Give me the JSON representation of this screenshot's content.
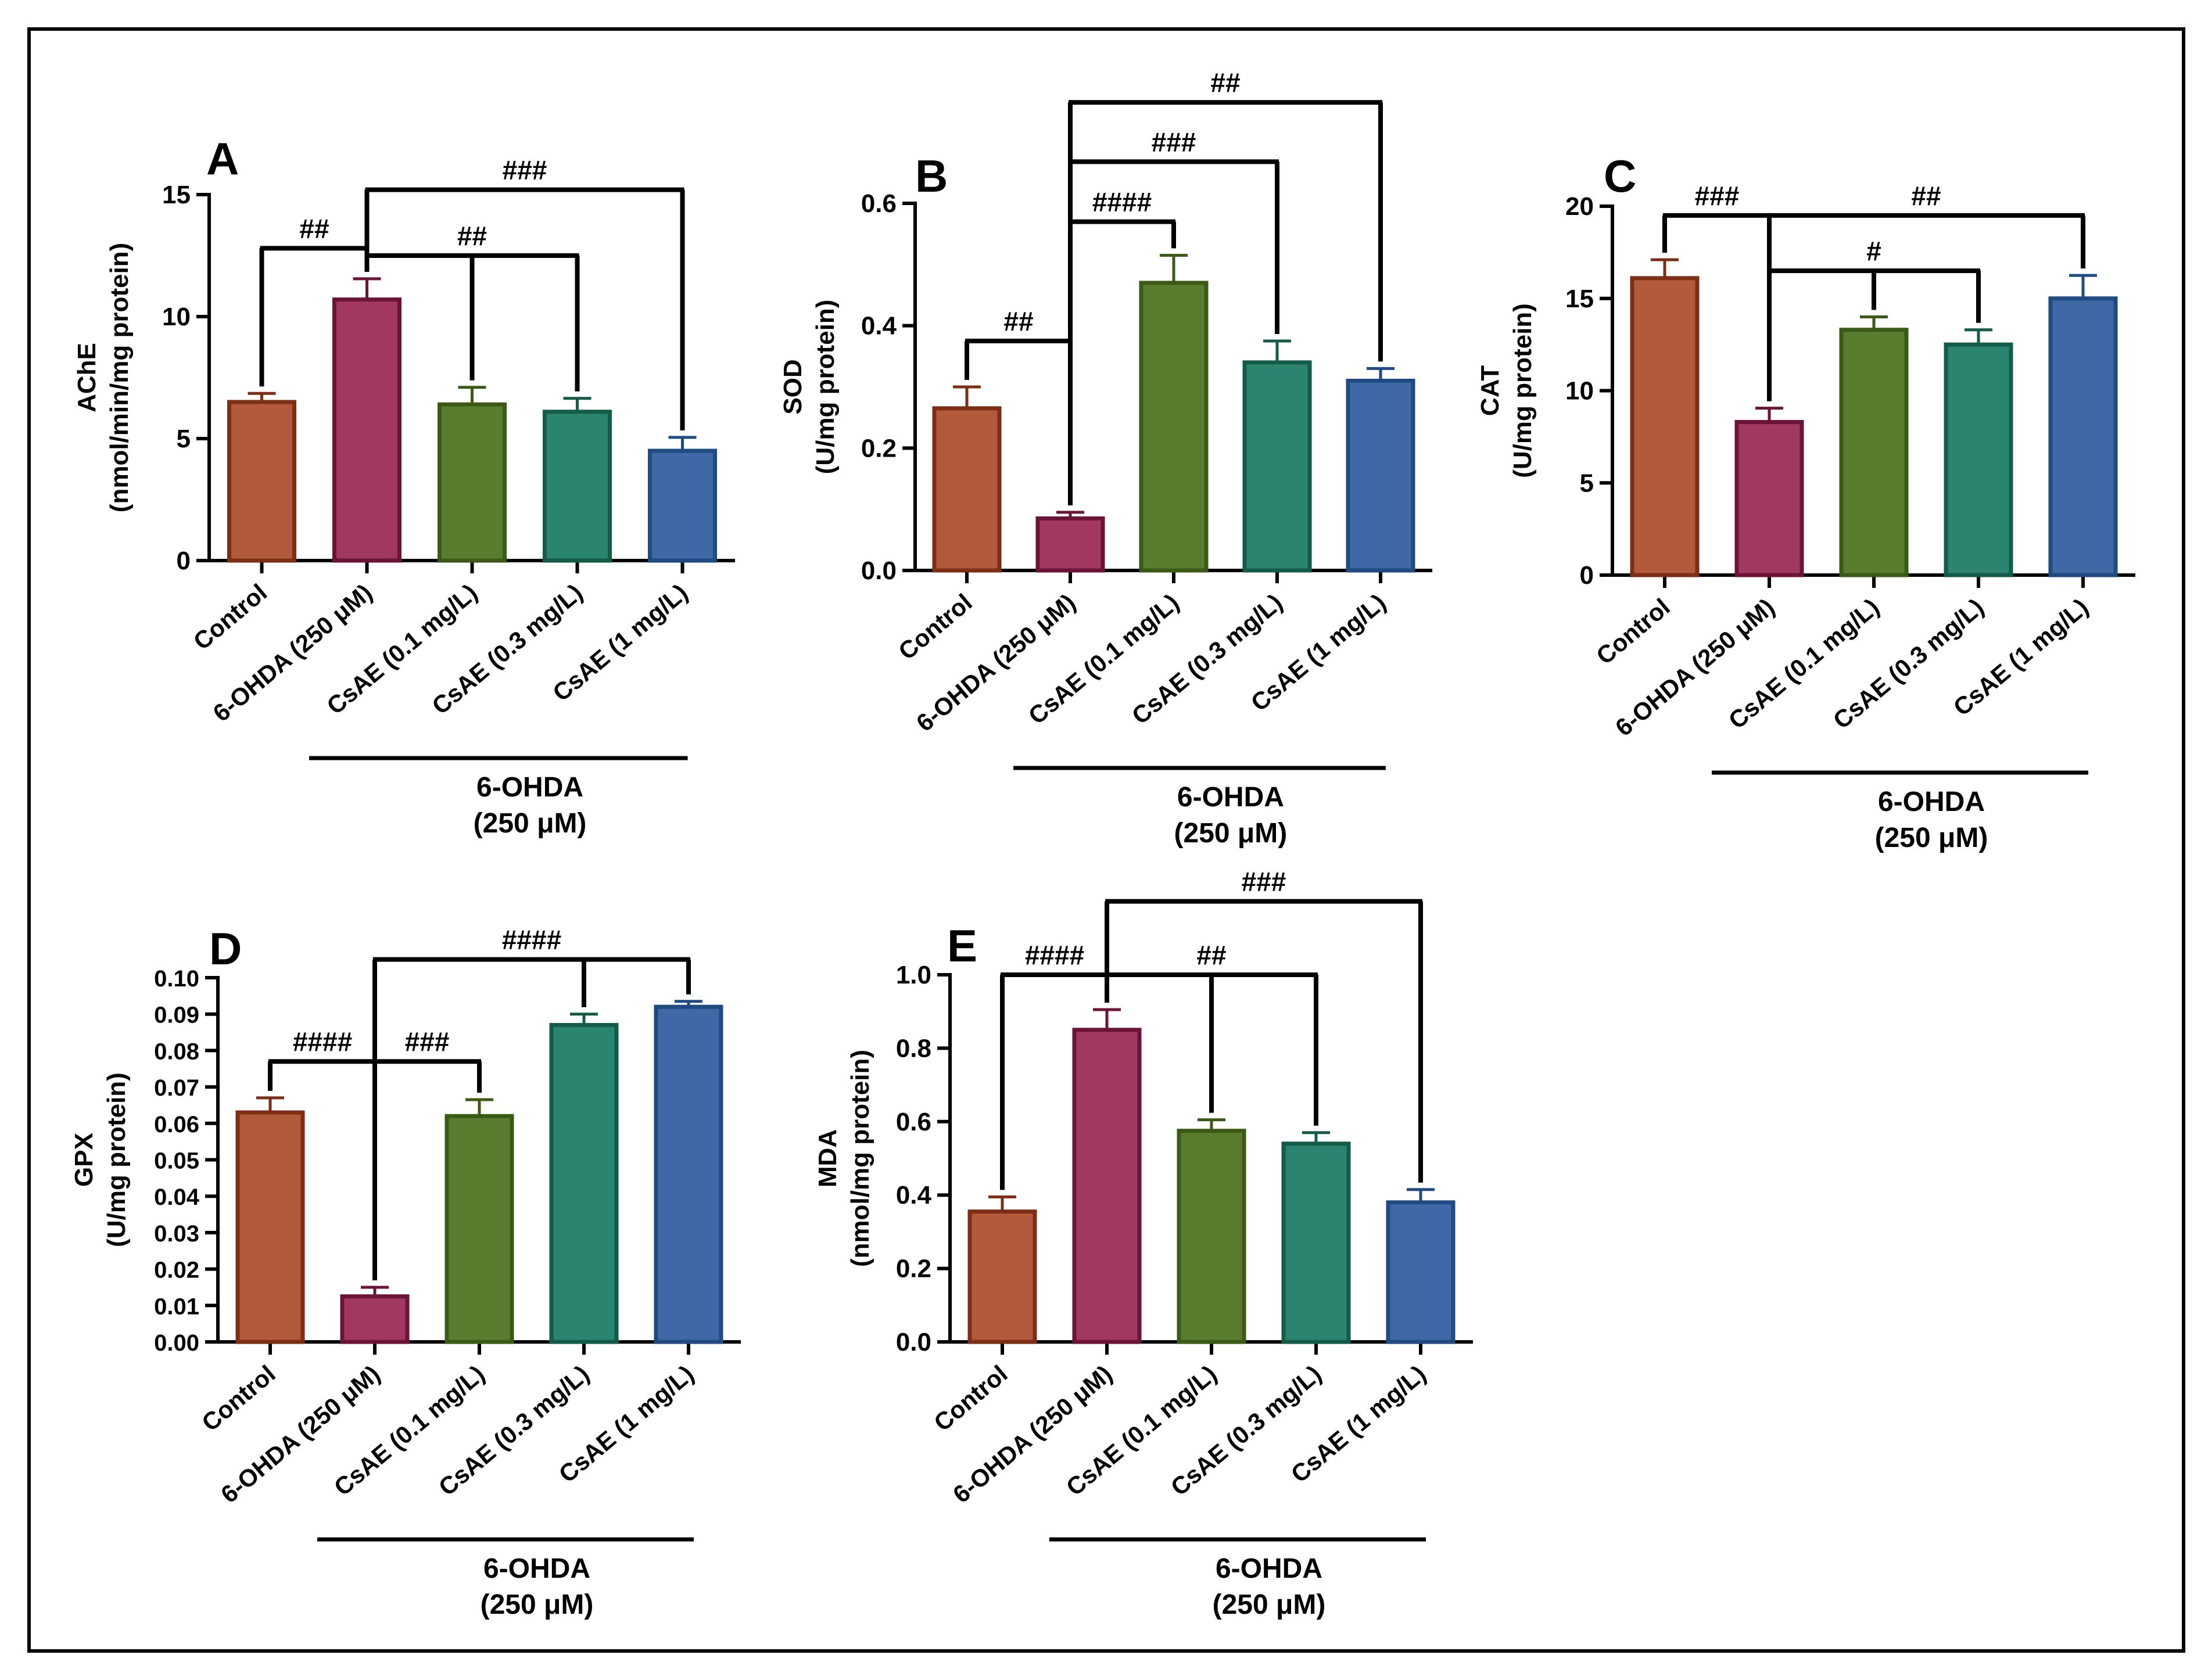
{
  "figure": {
    "group_label_line1": "6-OHDA",
    "group_label_line2": "(250 μM)",
    "categories": [
      "Control",
      "6-OHDA (250 μM)",
      "CsAE (0.1 mg/L)",
      "CsAE (0.3 mg/L)",
      "CsAE (1 mg/L)"
    ],
    "bar_colors": {
      "fills": [
        "#b25a3c",
        "#a0385f",
        "#5a7c2e",
        "#2b8470",
        "#3f68a6"
      ],
      "strokes": [
        "#7d2e14",
        "#6b1438",
        "#3a5a16",
        "#145c4a",
        "#1f4a82"
      ]
    }
  },
  "chart_data": [
    {
      "panel_letter": "A",
      "type": "bar",
      "ylabel_line1": "AChE",
      "ylabel_line2": "(nmol/min/mg protein)",
      "ylim": [
        0,
        15
      ],
      "yticks": [
        "0",
        "5",
        "10",
        "15"
      ],
      "categories": [
        "Control",
        "6-OHDA (250 μM)",
        "CsAE (0.1 mg/L)",
        "CsAE (0.3 mg/L)",
        "CsAE (1 mg/L)"
      ],
      "values": [
        6.5,
        10.7,
        6.4,
        6.1,
        4.5
      ],
      "errors": [
        0.35,
        0.85,
        0.7,
        0.55,
        0.55
      ],
      "annotations": [
        {
          "label": "##",
          "from": 0,
          "to": [
            1
          ],
          "level": 12.8
        },
        {
          "label": "##",
          "from": 1,
          "to": [
            3
          ],
          "level": 12.5,
          "drops": [
            2,
            3
          ]
        },
        {
          "label": "###",
          "from": 1,
          "to": [
            4
          ],
          "level": 15.2
        }
      ]
    },
    {
      "panel_letter": "B",
      "type": "bar",
      "ylabel_line1": "SOD",
      "ylabel_line2": "(U/mg protein)",
      "ylim": [
        0,
        0.6
      ],
      "yticks": [
        "0.0",
        "0.2",
        "0.4",
        "0.6"
      ],
      "categories": [
        "Control",
        "6-OHDA (250 μM)",
        "CsAE (0.1 mg/L)",
        "CsAE (0.3 mg/L)",
        "CsAE (1 mg/L)"
      ],
      "values": [
        0.265,
        0.085,
        0.47,
        0.34,
        0.31
      ],
      "errors": [
        0.035,
        0.01,
        0.045,
        0.035,
        0.02
      ],
      "annotations": [
        {
          "label": "##",
          "from": 0,
          "to": [
            1
          ],
          "level": 0.375
        },
        {
          "label": "####",
          "from": 1,
          "to": [
            2
          ],
          "level": 0.57
        },
        {
          "label": "###",
          "from": 1,
          "to": [
            3
          ],
          "level": 0.668
        },
        {
          "label": "##",
          "from": 1,
          "to": [
            4
          ],
          "level": 0.765
        }
      ]
    },
    {
      "panel_letter": "C",
      "type": "bar",
      "ylabel_line1": "CAT",
      "ylabel_line2": "(U/mg protein)",
      "ylim": [
        0,
        20
      ],
      "yticks": [
        "0",
        "5",
        "10",
        "15",
        "20"
      ],
      "categories": [
        "Control",
        "6-OHDA (250 μM)",
        "CsAE (0.1 mg/L)",
        "CsAE (0.3 mg/L)",
        "CsAE (1 mg/L)"
      ],
      "values": [
        16.1,
        8.3,
        13.3,
        12.5,
        15.0
      ],
      "errors": [
        1.0,
        0.75,
        0.7,
        0.8,
        1.25
      ],
      "annotations": [
        {
          "label": "###",
          "from": 0,
          "to": [
            1
          ],
          "level": 19.5
        },
        {
          "label": "#",
          "from": 1,
          "to": [
            3
          ],
          "level": 16.5,
          "drops": [
            2,
            3
          ]
        },
        {
          "label": "##",
          "from": 1,
          "to": [
            4
          ],
          "level": 19.5
        }
      ]
    },
    {
      "panel_letter": "D",
      "type": "bar",
      "ylabel_line1": "GPX",
      "ylabel_line2": "(U/mg protein)",
      "ylim": [
        0,
        0.1
      ],
      "yticks": [
        "0.00",
        "0.01",
        "0.02",
        "0.03",
        "0.04",
        "0.05",
        "0.06",
        "0.07",
        "0.08",
        "0.09",
        "0.10"
      ],
      "categories": [
        "Control",
        "6-OHDA (250 μM)",
        "CsAE (0.1 mg/L)",
        "CsAE (0.3 mg/L)",
        "CsAE (1 mg/L)"
      ],
      "values": [
        0.063,
        0.0125,
        0.062,
        0.087,
        0.092
      ],
      "errors": [
        0.004,
        0.0025,
        0.0045,
        0.003,
        0.0015
      ],
      "annotations": [
        {
          "label": "####",
          "from": 0,
          "to": [
            1
          ],
          "level": 0.077
        },
        {
          "label": "###",
          "from": 1,
          "to": [
            2
          ],
          "level": 0.077
        },
        {
          "label": "####",
          "from": 1,
          "to": [
            4
          ],
          "level": 0.105,
          "drops": [
            3,
            4
          ]
        }
      ]
    },
    {
      "panel_letter": "E",
      "type": "bar",
      "ylabel_line1": "MDA",
      "ylabel_line2": "(nmol/mg protein)",
      "ylim": [
        0,
        1.0
      ],
      "yticks": [
        "0.0",
        "0.2",
        "0.4",
        "0.6",
        "0.8",
        "1.0"
      ],
      "categories": [
        "Control",
        "6-OHDA (250 μM)",
        "CsAE (0.1 mg/L)",
        "CsAE (0.3 mg/L)",
        "CsAE (1 mg/L)"
      ],
      "values": [
        0.355,
        0.85,
        0.575,
        0.54,
        0.38
      ],
      "errors": [
        0.04,
        0.055,
        0.03,
        0.03,
        0.035
      ],
      "annotations": [
        {
          "label": "####",
          "from": 0,
          "to": [
            1
          ],
          "level": 1.0
        },
        {
          "label": "##",
          "from": 1,
          "to": [
            3
          ],
          "level": 1.0,
          "drops": [
            2,
            3
          ]
        },
        {
          "label": "###",
          "from": 1,
          "to": [
            4
          ],
          "level": 1.2
        }
      ]
    }
  ]
}
